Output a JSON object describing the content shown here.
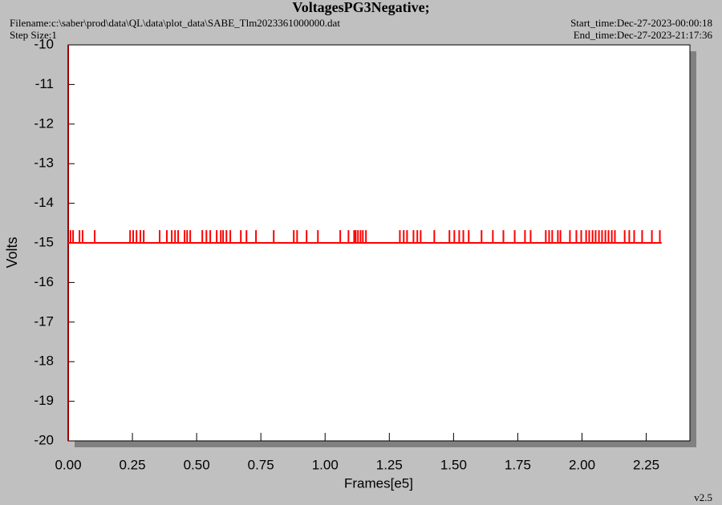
{
  "chart_data": {
    "type": "line",
    "title": "VoltagesPG3Negative;",
    "filename": "Filename:c:\\saber\\prod\\data\\QL\\data\\plot_data\\SABE_Tlm2023361000000.dat",
    "step_size": "Step Size:1",
    "start_time": "Start_time:Dec-27-2023-00:00:18",
    "end_time": "End_time:Dec-27-2023-21:17:36",
    "version": "v2.5",
    "xlabel": "Frames[e5]",
    "ylabel": "Volts",
    "xlim": [
      0,
      2.42
    ],
    "ylim": [
      -20,
      -10
    ],
    "xticks": [
      {
        "value": 0,
        "label": "0.00"
      },
      {
        "value": 0.25,
        "label": "0.25"
      },
      {
        "value": 0.5,
        "label": "0.50"
      },
      {
        "value": 0.75,
        "label": "0.75"
      },
      {
        "value": 1,
        "label": "1.00"
      },
      {
        "value": 1.25,
        "label": "1.25"
      },
      {
        "value": 1.5,
        "label": "1.50"
      },
      {
        "value": 1.75,
        "label": "1.75"
      },
      {
        "value": 2,
        "label": "2.00"
      },
      {
        "value": 2.25,
        "label": "2.25"
      }
    ],
    "yticks": [
      -10,
      -11,
      -12,
      -13,
      -14,
      -15,
      -16,
      -17,
      -18,
      -19,
      -20
    ],
    "series": [
      {
        "color": "#ff0000",
        "x": [
          0,
          2.31
        ],
        "values": [
          -15,
          -15
        ]
      },
      {
        "color": "#ff0000",
        "x": [
          0.009,
          0.019,
          0.044,
          0.056,
          0.103,
          0.241,
          0.253,
          0.266,
          0.281,
          0.294,
          0.356,
          0.384,
          0.403,
          0.416,
          0.428,
          0.453,
          0.463,
          0.475,
          0.522,
          0.538,
          0.553,
          0.578,
          0.594,
          0.603,
          0.616,
          0.631,
          0.672,
          0.694,
          0.731,
          0.8,
          0.878,
          0.891,
          0.928,
          0.972,
          1.059,
          1.091,
          1.113,
          1.119,
          1.128,
          1.138,
          1.147,
          1.159,
          1.291,
          1.306,
          1.319,
          1.344,
          1.359,
          1.372,
          1.425,
          1.484,
          1.503,
          1.522,
          1.538,
          1.559,
          1.609,
          1.653,
          1.694,
          1.738,
          1.778,
          1.8,
          1.859,
          1.872,
          1.884,
          1.906,
          1.916,
          1.953,
          1.978,
          1.997,
          2.016,
          2.028,
          2.041,
          2.053,
          2.066,
          2.078,
          2.091,
          2.103,
          2.116,
          2.128,
          2.166,
          2.184,
          2.203,
          2.234,
          2.272,
          2.303
        ],
        "values": [
          -14.8,
          -14.8,
          -14.8,
          -14.8,
          -14.8,
          -14.8,
          -14.8,
          -14.8,
          -14.8,
          -14.8,
          -14.8,
          -14.8,
          -14.8,
          -14.8,
          -14.8,
          -14.8,
          -14.8,
          -14.8,
          -14.8,
          -14.8,
          -14.8,
          -14.8,
          -14.8,
          -14.8,
          -14.8,
          -14.8,
          -14.8,
          -14.8,
          -14.8,
          -14.8,
          -14.8,
          -14.8,
          -14.8,
          -14.8,
          -14.8,
          -14.8,
          -14.8,
          -14.8,
          -14.8,
          -14.8,
          -14.8,
          -14.8,
          -14.8,
          -14.8,
          -14.8,
          -14.8,
          -14.8,
          -14.8,
          -14.8,
          -14.8,
          -14.8,
          -14.8,
          -14.8,
          -14.8,
          -14.8,
          -14.8,
          -14.8,
          -14.8,
          -14.8,
          -14.8,
          -14.8,
          -14.8,
          -14.8,
          -14.8,
          -14.8,
          -14.8,
          -14.8,
          -14.8,
          -14.8,
          -14.8,
          -14.8,
          -14.8,
          -14.8,
          -14.8,
          -14.8,
          -14.8,
          -14.8,
          -14.8,
          -14.8,
          -14.8,
          -14.8,
          -14.8,
          -14.8,
          -14.8
        ]
      }
    ]
  }
}
